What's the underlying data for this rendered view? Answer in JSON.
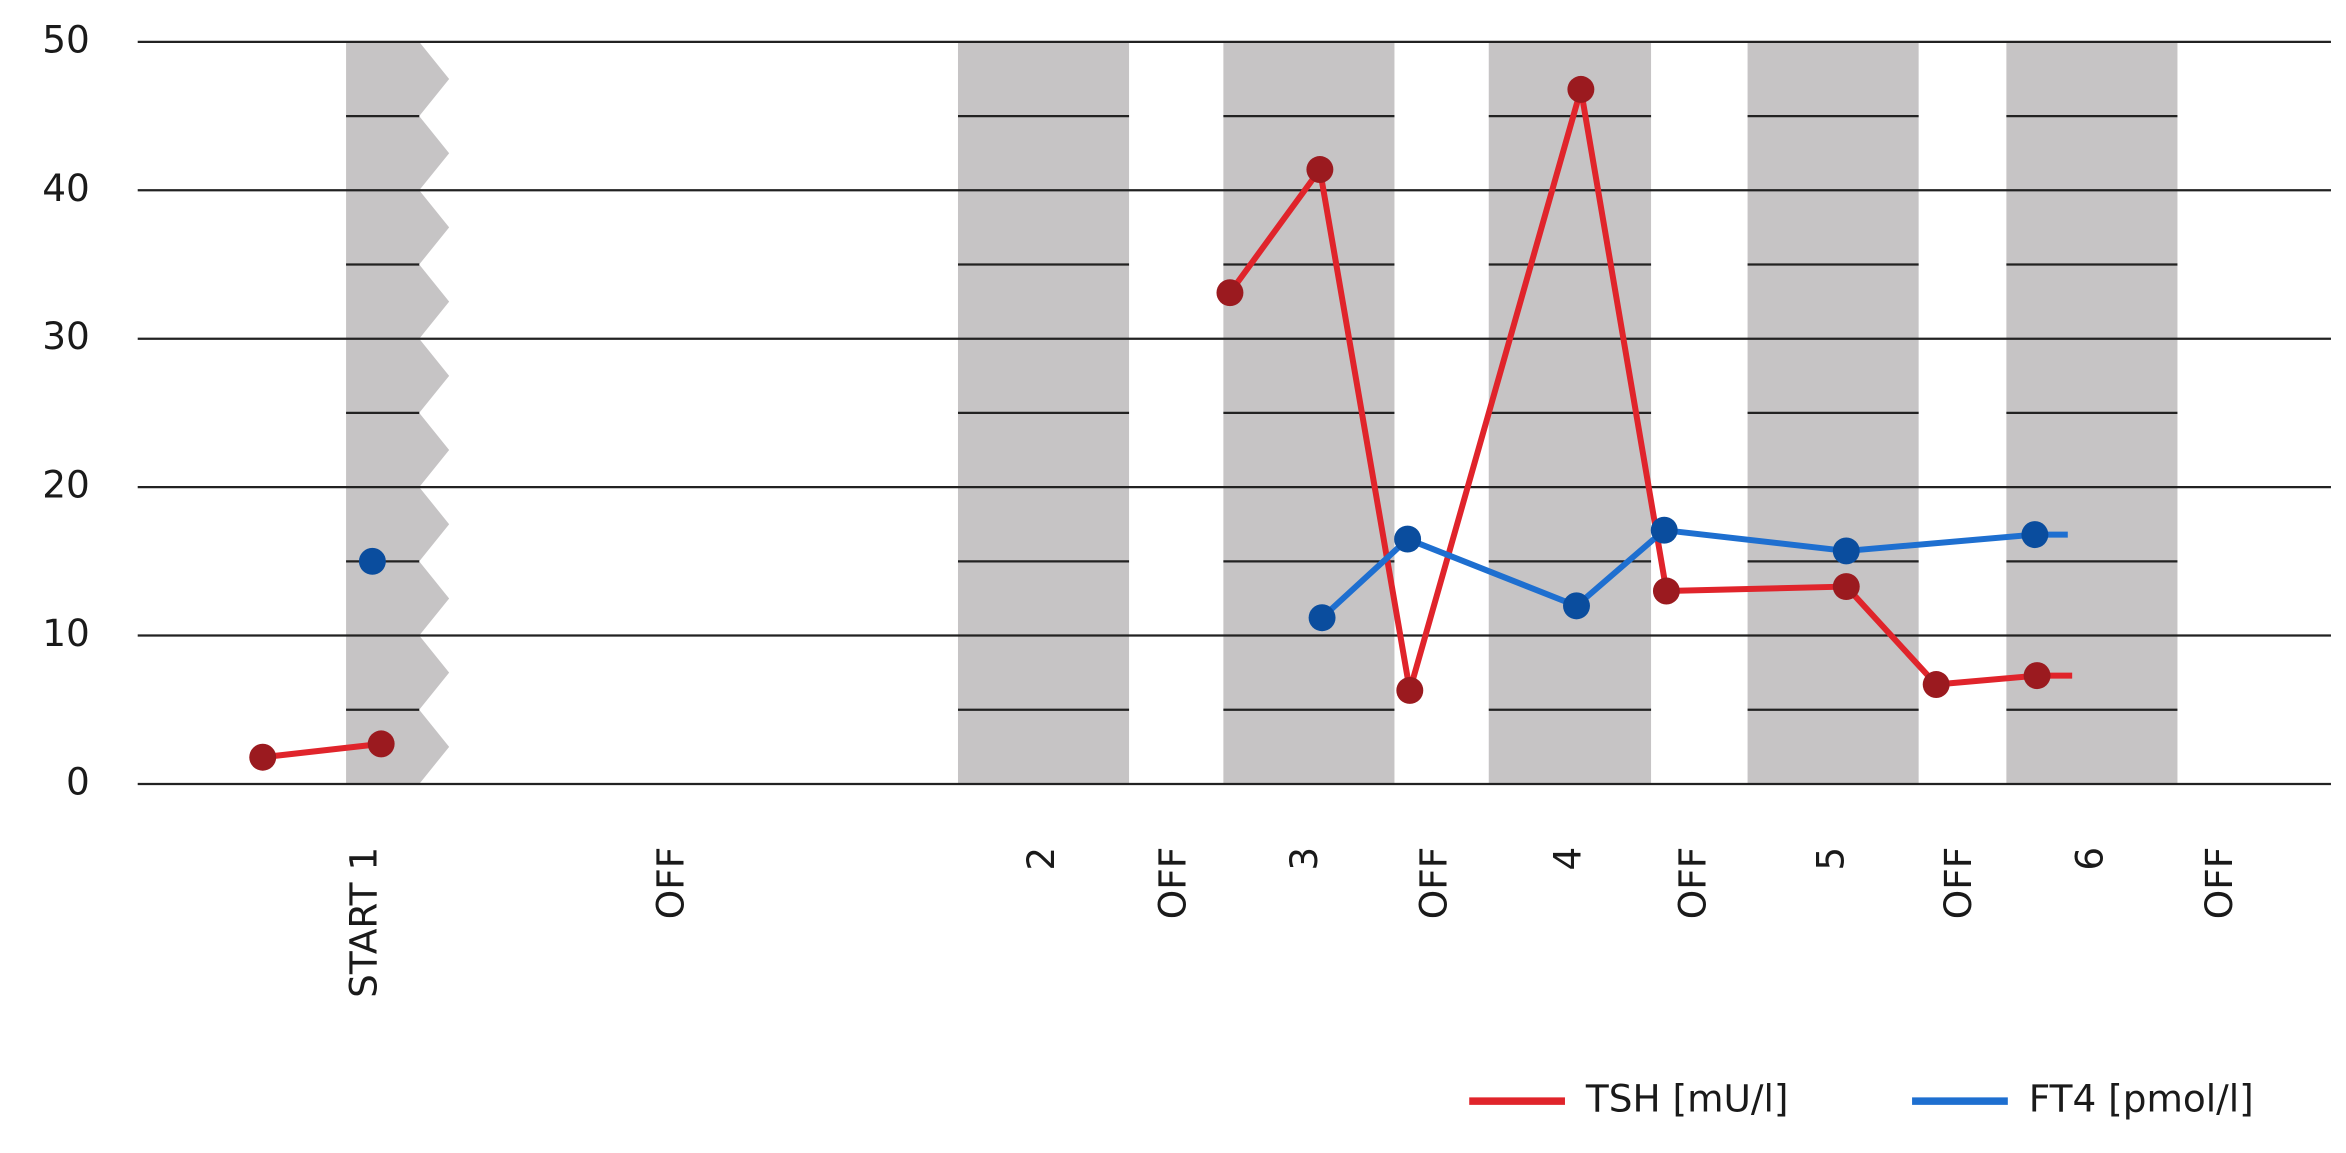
{
  "chart_data": {
    "type": "line",
    "ylim": [
      0,
      50
    ],
    "yticks": [
      0,
      10,
      20,
      30,
      40,
      50
    ],
    "xlim": [
      0,
      100
    ],
    "xticks": [
      {
        "value": 10.4,
        "label": "START 1"
      },
      {
        "value": 24.4,
        "label": "OFF"
      },
      {
        "value": 41.3,
        "label": "2"
      },
      {
        "value": 47.3,
        "label": "OFF"
      },
      {
        "value": 53.3,
        "label": "3"
      },
      {
        "value": 59.2,
        "label": "OFF"
      },
      {
        "value": 65.3,
        "label": "4"
      },
      {
        "value": 71.0,
        "label": "OFF"
      },
      {
        "value": 77.3,
        "label": "5"
      },
      {
        "value": 83.1,
        "label": "OFF"
      },
      {
        "value": 89.1,
        "label": "6"
      },
      {
        "value": 95.0,
        "label": "OFF"
      }
    ],
    "grid": true,
    "legend": "bottom-right",
    "series": [
      {
        "name": "TSH [mU/l]",
        "color": "#e0242b",
        "marker_color": "#9b1a1f",
        "x": [
          5.7,
          11.1,
          null,
          49.8,
          53.9,
          58.0,
          65.8,
          69.7,
          77.9,
          82.0,
          86.6,
          88.2
        ],
        "values": [
          1.8,
          2.7,
          null,
          33.1,
          41.4,
          6.3,
          46.8,
          13.0,
          13.3,
          6.7,
          7.3,
          7.3
        ]
      },
      {
        "name": "FT4 [pmol/l]",
        "color": "#1e6fd0",
        "marker_color": "#0a4d9e",
        "x": [
          10.7,
          null,
          54.0,
          57.9,
          65.6,
          69.6,
          77.9,
          86.5,
          88.0
        ],
        "values": [
          15.0,
          null,
          11.2,
          16.5,
          12.0,
          17.1,
          15.7,
          16.8,
          16.8
        ]
      }
    ]
  }
}
